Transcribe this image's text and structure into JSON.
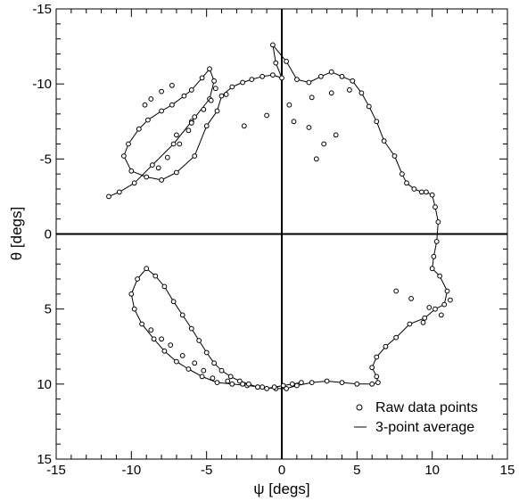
{
  "chart_data": {
    "type": "scatter",
    "title": "",
    "xlabel": "ψ [degs]",
    "ylabel": "θ [degs]",
    "xlim": [
      -15,
      15
    ],
    "ylim": [
      -15,
      15
    ],
    "y_inverted": true,
    "x_ticks": [
      -15,
      -10,
      -5,
      0,
      5,
      10,
      15
    ],
    "y_ticks": [
      -15,
      -10,
      -5,
      0,
      5,
      10,
      15
    ],
    "grid": false,
    "legend_position": "bottom-right",
    "colors": {
      "axes": "#000000",
      "markers": "#000000",
      "line": "#000000",
      "background": "#ffffff"
    },
    "series": [
      {
        "name": "Raw data points",
        "style": "open-circle-markers",
        "x": [
          -11.5,
          -10.8,
          -9.8,
          -8.6,
          -7.2,
          -6.0,
          -4.8,
          -4.5,
          -4.8,
          -5.3,
          -6.0,
          -6.5,
          -7.3,
          -8.0,
          -8.9,
          -9.5,
          -10.2,
          -10.5,
          -10.0,
          -9.0,
          -8.0,
          -7.0,
          -5.8,
          -5.0,
          -4.3,
          -4.0,
          -3.3,
          -2.6,
          -2.0,
          -1.3,
          -0.6,
          0.0,
          -0.4,
          -0.6,
          0.3,
          1.0,
          1.8,
          2.6,
          3.3,
          4.0,
          4.7,
          5.3,
          5.8,
          6.3,
          6.8,
          7.5,
          8.0,
          8.3,
          8.8,
          9.3,
          9.6,
          10.0,
          10.2,
          10.4,
          10.3,
          10.1,
          10.0,
          10.5,
          11.0,
          10.8,
          10.2,
          9.5,
          8.5,
          7.6,
          6.9,
          6.3,
          6.0,
          6.3,
          6.4,
          6.0,
          5.0,
          4.0,
          3.0,
          2.0,
          1.0,
          0.3,
          -0.4,
          -1.3,
          -2.3,
          -3.3,
          -4.3,
          -5.3,
          -6.2,
          -7.0,
          -7.8,
          -8.5,
          -9.3,
          -9.8,
          -10.0,
          -9.6,
          -9.0,
          -8.4,
          -7.8,
          -7.2,
          -6.6,
          -6.0,
          -5.5,
          -5.0,
          -4.5,
          -4.0,
          -3.4,
          -2.8,
          -2.2,
          -1.6,
          -1.0,
          -0.5,
          0.1,
          0.7,
          1.3,
          -2.5,
          -1.0,
          0.5,
          2.0,
          3.3,
          4.5,
          -7.0,
          -6.0,
          -5.2,
          -4.7,
          -3.7,
          -4.4,
          -8.2,
          -7.6,
          -6.8,
          -6.2,
          -5.8,
          -9.1,
          -8.7,
          -8.0,
          -7.3,
          2.3,
          2.8,
          3.6,
          1.8,
          0.8,
          7.6,
          8.6,
          9.8,
          10.6,
          11.2,
          9.4,
          -8.7,
          -8.0,
          -7.4,
          -6.6,
          -5.8,
          -5.2,
          -4.6,
          -3.6,
          -2.6,
          -1.6
        ],
        "y": [
          -2.5,
          -2.8,
          -3.4,
          -4.6,
          -6.0,
          -7.5,
          -9.0,
          -10.2,
          -11.0,
          -10.4,
          -9.6,
          -9.2,
          -8.6,
          -8.2,
          -7.6,
          -7.0,
          -6.0,
          -5.2,
          -4.2,
          -3.8,
          -3.6,
          -4.1,
          -5.2,
          -7.2,
          -8.2,
          -9.2,
          -9.8,
          -10.1,
          -10.3,
          -10.5,
          -10.6,
          -10.4,
          -11.4,
          -12.6,
          -11.5,
          -10.3,
          -10.1,
          -10.5,
          -10.8,
          -10.5,
          -10.2,
          -9.4,
          -8.5,
          -7.5,
          -6.2,
          -5.2,
          -4.0,
          -3.4,
          -3.0,
          -2.8,
          -2.8,
          -2.6,
          -1.8,
          -0.8,
          0.5,
          1.5,
          2.3,
          2.8,
          3.8,
          4.7,
          5.0,
          5.6,
          6.0,
          6.9,
          7.5,
          8.2,
          8.9,
          9.5,
          9.9,
          10.0,
          10.0,
          9.9,
          9.8,
          9.9,
          10.1,
          10.3,
          10.3,
          10.2,
          10.1,
          10.0,
          9.9,
          9.5,
          9.0,
          8.5,
          7.8,
          7.0,
          6.0,
          5.0,
          4.0,
          3.0,
          2.3,
          2.8,
          3.5,
          4.5,
          5.4,
          6.3,
          7.1,
          7.9,
          8.6,
          9.1,
          9.5,
          9.8,
          10.0,
          10.2,
          10.3,
          10.2,
          10.1,
          10.0,
          9.9,
          -7.2,
          -7.9,
          -8.6,
          -9.1,
          -9.4,
          -9.6,
          -6.6,
          -7.4,
          -8.3,
          -8.9,
          -9.3,
          -9.7,
          -4.4,
          -5.1,
          -6.0,
          -6.9,
          -7.8,
          -8.6,
          -9.0,
          -9.5,
          -9.9,
          -5.0,
          -6.0,
          -6.6,
          -7.1,
          -7.5,
          3.8,
          4.3,
          4.9,
          5.4,
          4.4,
          5.9,
          6.4,
          7.0,
          7.4,
          8.1,
          8.6,
          9.1,
          9.6,
          9.8,
          10.0,
          10.2
        ]
      },
      {
        "name": "3-point average",
        "style": "thin-line",
        "x": [
          -11.5,
          -10.8,
          -9.8,
          -8.6,
          -7.2,
          -6.0,
          -4.8,
          -4.5,
          -4.8,
          -5.3,
          -6.0,
          -6.5,
          -7.3,
          -8.0,
          -8.9,
          -9.5,
          -10.2,
          -10.5,
          -10.0,
          -9.0,
          -8.0,
          -7.0,
          -5.8,
          -5.0,
          -4.3,
          -4.0,
          -3.3,
          -2.6,
          -2.0,
          -1.3,
          -0.6,
          0.0,
          -0.4,
          -0.6,
          0.3,
          1.0,
          1.8,
          2.6,
          3.3,
          4.0,
          4.7,
          5.3,
          5.8,
          6.3,
          6.8,
          7.5,
          8.0,
          8.3,
          8.8,
          9.3,
          9.6,
          10.0,
          10.2,
          10.4,
          10.3,
          10.1,
          10.0,
          10.5,
          11.0,
          10.8,
          10.2,
          9.5,
          8.5,
          7.6,
          6.9,
          6.3,
          6.0,
          6.3,
          6.4,
          6.0,
          5.0,
          4.0,
          3.0,
          2.0,
          1.0,
          0.3,
          -0.4,
          -1.3,
          -2.3,
          -3.3,
          -4.3,
          -5.3,
          -6.2,
          -7.0,
          -7.8,
          -8.5,
          -9.3,
          -9.8,
          -10.0,
          -9.6,
          -9.0,
          -8.4,
          -7.8,
          -7.2,
          -6.6,
          -6.0,
          -5.5,
          -5.0,
          -4.5,
          -4.0,
          -3.4,
          -2.8,
          -2.2,
          -1.6,
          -1.0,
          -0.5,
          0.1,
          0.7,
          1.3
        ],
        "y": [
          -2.5,
          -2.8,
          -3.4,
          -4.6,
          -6.0,
          -7.5,
          -9.0,
          -10.2,
          -11.0,
          -10.4,
          -9.6,
          -9.2,
          -8.6,
          -8.2,
          -7.6,
          -7.0,
          -6.0,
          -5.2,
          -4.2,
          -3.8,
          -3.6,
          -4.1,
          -5.2,
          -7.2,
          -8.2,
          -9.2,
          -9.8,
          -10.1,
          -10.3,
          -10.5,
          -10.6,
          -10.4,
          -11.4,
          -12.6,
          -11.5,
          -10.3,
          -10.1,
          -10.5,
          -10.8,
          -10.5,
          -10.2,
          -9.4,
          -8.5,
          -7.5,
          -6.2,
          -5.2,
          -4.0,
          -3.4,
          -3.0,
          -2.8,
          -2.8,
          -2.6,
          -1.8,
          -0.8,
          0.5,
          1.5,
          2.3,
          2.8,
          3.8,
          4.7,
          5.0,
          5.6,
          6.0,
          6.9,
          7.5,
          8.2,
          8.9,
          9.5,
          9.9,
          10.0,
          10.0,
          9.9,
          9.8,
          9.9,
          10.1,
          10.3,
          10.3,
          10.2,
          10.1,
          10.0,
          9.9,
          9.5,
          9.0,
          8.5,
          7.8,
          7.0,
          6.0,
          5.0,
          4.0,
          3.0,
          2.3,
          2.8,
          3.5,
          4.5,
          5.4,
          6.3,
          7.1,
          7.9,
          8.6,
          9.1,
          9.5,
          9.8,
          10.0,
          10.2,
          10.3,
          10.2,
          10.1,
          10.0,
          9.9
        ]
      }
    ]
  }
}
